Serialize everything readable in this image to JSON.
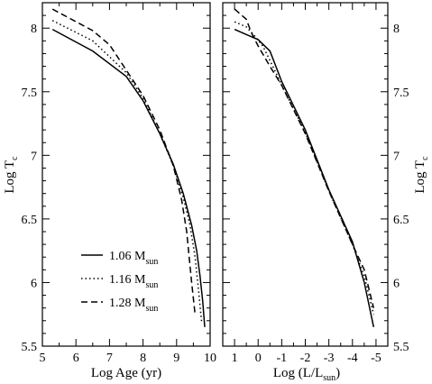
{
  "chart_data": [
    {
      "type": "line",
      "xlabel": "Log Age (yr)",
      "ylabel": "Log T",
      "ylabel_sub": "c",
      "xlim": [
        5,
        10
      ],
      "ylim": [
        5.5,
        8.2
      ],
      "xticks": [
        5,
        6,
        7,
        8,
        9,
        10
      ],
      "yticks": [
        5.5,
        6,
        6.5,
        7,
        7.5,
        8
      ],
      "xtick_labels": [
        "5",
        "6",
        "7",
        "8",
        "9",
        "10"
      ],
      "ytick_labels": [
        "5.5",
        "6",
        "6.5",
        "7",
        "7.5",
        "8"
      ],
      "legend": {
        "placement": "bottom-left",
        "entries": [
          {
            "text": "1.06 M",
            "sub": "sun",
            "style": "solid"
          },
          {
            "text": "1.16 M",
            "sub": "sun",
            "style": "dotted"
          },
          {
            "text": "1.28 M",
            "sub": "sun",
            "style": "dashed"
          }
        ]
      },
      "series": [
        {
          "style": "solid",
          "points": [
            [
              5.3,
              7.99
            ],
            [
              6.5,
              7.82
            ],
            [
              7.5,
              7.62
            ],
            [
              8.0,
              7.43
            ],
            [
              8.5,
              7.17
            ],
            [
              8.9,
              6.93
            ],
            [
              9.2,
              6.7
            ],
            [
              9.45,
              6.45
            ],
            [
              9.6,
              6.25
            ],
            [
              9.7,
              6.05
            ],
            [
              9.78,
              5.85
            ],
            [
              9.84,
              5.65
            ]
          ]
        },
        {
          "style": "dotted",
          "points": [
            [
              5.3,
              8.06
            ],
            [
              6.5,
              7.9
            ],
            [
              7.5,
              7.65
            ],
            [
              8.0,
              7.45
            ],
            [
              8.5,
              7.17
            ],
            [
              8.9,
              6.92
            ],
            [
              9.2,
              6.67
            ],
            [
              9.4,
              6.45
            ],
            [
              9.55,
              6.2
            ],
            [
              9.65,
              5.95
            ],
            [
              9.75,
              5.68
            ]
          ]
        },
        {
          "style": "dashed",
          "points": [
            [
              5.3,
              8.15
            ],
            [
              6.5,
              7.98
            ],
            [
              7.0,
              7.87
            ],
            [
              7.5,
              7.67
            ],
            [
              8.0,
              7.47
            ],
            [
              8.5,
              7.2
            ],
            [
              8.9,
              6.92
            ],
            [
              9.15,
              6.65
            ],
            [
              9.3,
              6.4
            ],
            [
              9.45,
              6.0
            ],
            [
              9.55,
              5.75
            ]
          ]
        }
      ]
    },
    {
      "type": "line",
      "xlabel": "Log (L/L",
      "xlabel_sub": "sun",
      "xlabel_suffix": ")",
      "ylabel": "Log T",
      "ylabel_sub": "c",
      "x_inverted": true,
      "xlim": [
        1.5,
        -5.5
      ],
      "ylim": [
        5.5,
        8.2
      ],
      "xticks": [
        1,
        0,
        -1,
        -2,
        -3,
        -4,
        -5
      ],
      "yticks": [
        5.5,
        6,
        6.5,
        7,
        7.5,
        8
      ],
      "xtick_labels": [
        "1",
        "0",
        "-1",
        "-2",
        "-3",
        "-4",
        "-5"
      ],
      "ytick_labels": [
        "5.5",
        "6",
        "6.5",
        "7",
        "7.5",
        "8"
      ],
      "series": [
        {
          "style": "solid",
          "points": [
            [
              1.0,
              7.99
            ],
            [
              0.5,
              7.95
            ],
            [
              0.0,
              7.91
            ],
            [
              -0.5,
              7.82
            ],
            [
              -1.0,
              7.58
            ],
            [
              -2.0,
              7.2
            ],
            [
              -3.0,
              6.73
            ],
            [
              -4.0,
              6.32
            ],
            [
              -4.5,
              6.0
            ],
            [
              -4.9,
              5.65
            ]
          ]
        },
        {
          "style": "dotted",
          "points": [
            [
              1.0,
              8.05
            ],
            [
              0.5,
              8.01
            ],
            [
              0.2,
              7.95
            ],
            [
              -0.2,
              7.86
            ],
            [
              -0.7,
              7.67
            ],
            [
              -1.0,
              7.55
            ],
            [
              -2.0,
              7.18
            ],
            [
              -3.0,
              6.72
            ],
            [
              -4.0,
              6.3
            ],
            [
              -4.5,
              6.05
            ],
            [
              -4.9,
              5.75
            ]
          ]
        },
        {
          "style": "dashed",
          "points": [
            [
              1.0,
              8.15
            ],
            [
              0.5,
              8.07
            ],
            [
              0.3,
              7.97
            ],
            [
              0.0,
              7.86
            ],
            [
              -0.5,
              7.7
            ],
            [
              -1.0,
              7.55
            ],
            [
              -2.0,
              7.17
            ],
            [
              -3.0,
              6.72
            ],
            [
              -4.0,
              6.3
            ],
            [
              -4.5,
              6.1
            ],
            [
              -4.9,
              5.8
            ]
          ]
        }
      ]
    }
  ]
}
